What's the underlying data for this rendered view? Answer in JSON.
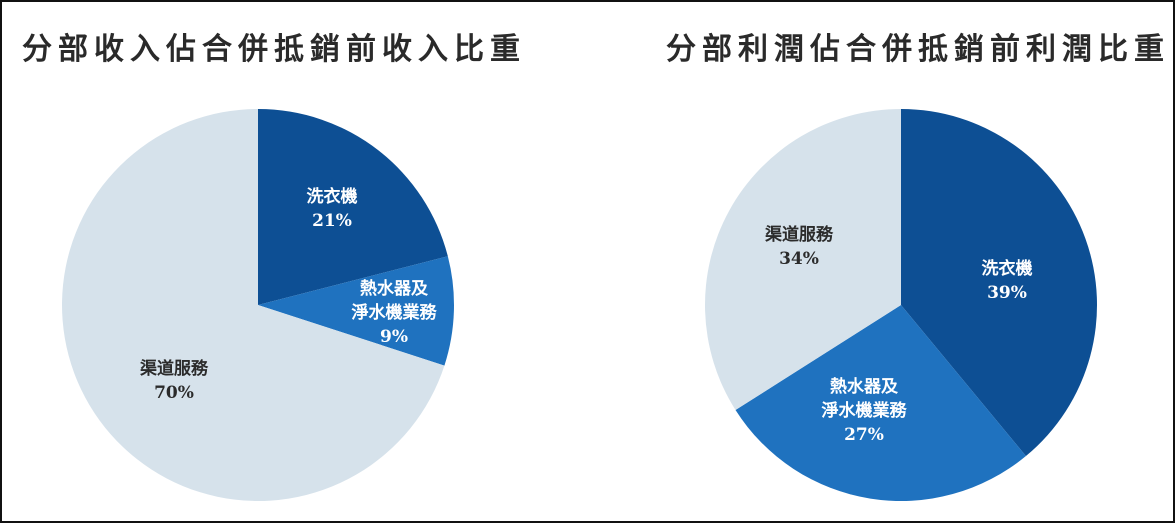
{
  "colors": {
    "dark_blue": "#0d4f94",
    "mid_blue": "#1f72bf",
    "light_gray_blue": "#d6e2eb",
    "label_light": "#ffffff",
    "label_dark": "#2b2b2b",
    "title": "#2a2a2a"
  },
  "charts": [
    {
      "title": "分部收入佔合併抵銷前收入比重",
      "slices": [
        {
          "name_lines": [
            "洗衣機"
          ],
          "pct_label": "21%"
        },
        {
          "name_lines": [
            "熱水器及",
            "淨水機業務"
          ],
          "pct_label": "9%"
        },
        {
          "name_lines": [
            "渠道服務"
          ],
          "pct_label": "70%"
        }
      ]
    },
    {
      "title": "分部利潤佔合併抵銷前利潤比重",
      "slices": [
        {
          "name_lines": [
            "洗衣機"
          ],
          "pct_label": "39%"
        },
        {
          "name_lines": [
            "熱水器及",
            "淨水機業務"
          ],
          "pct_label": "27%"
        },
        {
          "name_lines": [
            "渠道服務"
          ],
          "pct_label": "34%"
        }
      ]
    }
  ],
  "chart_data": [
    {
      "type": "pie",
      "title": "分部收入佔合併抵銷前收入比重",
      "categories": [
        "洗衣機",
        "熱水器及淨水機業務",
        "渠道服務"
      ],
      "values": [
        21,
        9,
        70
      ],
      "unit": "%",
      "start_angle": "12 o'clock, clockwise",
      "colors": [
        "#0d4f94",
        "#1f72bf",
        "#d6e2eb"
      ],
      "legend": "none (inline labels)"
    },
    {
      "type": "pie",
      "title": "分部利潤佔合併抵銷前利潤比重",
      "categories": [
        "洗衣機",
        "熱水器及淨水機業務",
        "渠道服務"
      ],
      "values": [
        39,
        27,
        34
      ],
      "unit": "%",
      "start_angle": "12 o'clock, clockwise",
      "colors": [
        "#0d4f94",
        "#1f72bf",
        "#d6e2eb"
      ],
      "legend": "none (inline labels)"
    }
  ]
}
